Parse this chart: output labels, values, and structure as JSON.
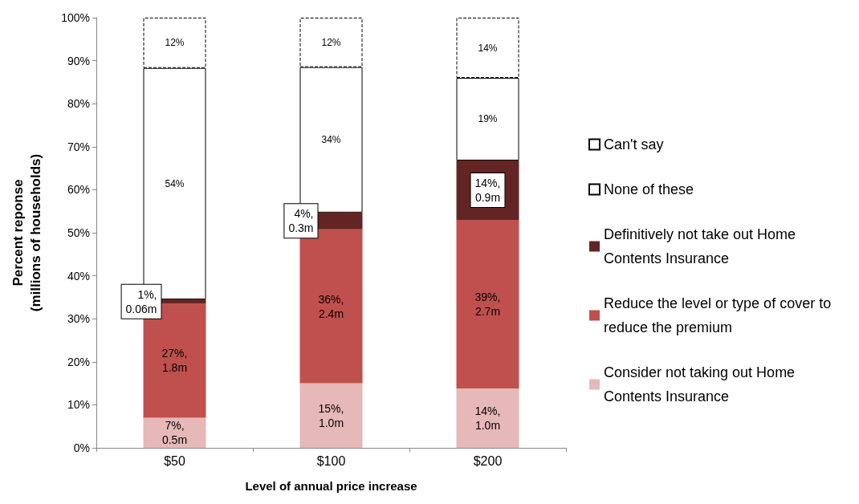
{
  "chart_data": {
    "type": "bar",
    "stacked": true,
    "xlabel": "Level of annual price increase",
    "ylabel": "Percent reponse\n(millions of households)",
    "categories": [
      "$50",
      "$100",
      "$200"
    ],
    "ylim": [
      0,
      100
    ],
    "yticks": [
      {
        "value": 0,
        "label": "0%"
      },
      {
        "value": 10,
        "label": "10%"
      },
      {
        "value": 20,
        "label": "20%"
      },
      {
        "value": 30,
        "label": "30%"
      },
      {
        "value": 40,
        "label": "40%"
      },
      {
        "value": 50,
        "label": "50%"
      },
      {
        "value": 60,
        "label": "60%"
      },
      {
        "value": 70,
        "label": "70%"
      },
      {
        "value": 80,
        "label": "80%"
      },
      {
        "value": 90,
        "label": "90%"
      },
      {
        "value": 100,
        "label": "100%"
      }
    ],
    "grid": false,
    "legend": "right",
    "series": [
      {
        "name": "Consider not taking out Home Contents Insurance",
        "color": "#e6b8b7",
        "values": [
          7,
          15,
          13.8
        ],
        "value_labels": [
          "7%,\n0.5m",
          "15%,\n1.0m",
          "14%,\n1.0m"
        ]
      },
      {
        "name": "Reduce the level or type of cover to reduce the premium",
        "color": "#c0504d",
        "values": [
          26.5,
          35.8,
          39.2
        ],
        "value_labels": [
          "27%,\n1.8m",
          "36%,\n2.4m",
          "39%,\n2.7m"
        ]
      },
      {
        "name": "Definitively not take out Home Contents Insurance",
        "color": "#632523",
        "values": [
          1,
          3.9,
          13.8
        ],
        "value_labels": [
          "1%,\n0.06m",
          "4%,\n0.3m",
          "14%,\n0.9m"
        ]
      },
      {
        "name": "None of these",
        "color": "#ffffff",
        "values": [
          53.8,
          33.8,
          19.2
        ],
        "value_labels": [
          "54%",
          "34%",
          "19%"
        ]
      },
      {
        "name": "Can't say",
        "color": "#ffffff",
        "line_style": "dashed",
        "values": [
          11.7,
          11.5,
          14
        ],
        "value_labels": [
          "12%",
          "12%",
          "14%"
        ]
      }
    ]
  }
}
